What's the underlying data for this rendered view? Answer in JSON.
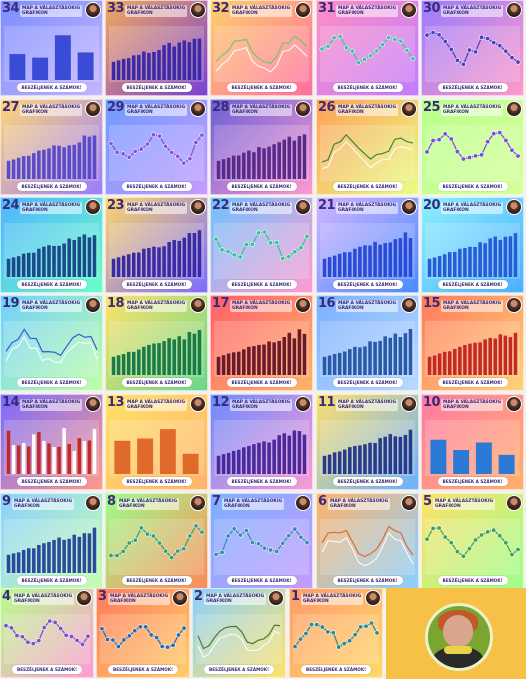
{
  "series_title": "MAP A VÁLASZTÁSOKIG",
  "series_subtitle": "GRAFIKON",
  "cta_label": "BESZÉLJENEK A SZÁMOK!",
  "tiles": [
    {
      "num": "34",
      "grad": [
        "#7b8cff",
        "#c5b6ff"
      ],
      "type": "bars2",
      "accent": "#3a4bd6"
    },
    {
      "num": "33",
      "grad": [
        "#f3a95b",
        "#7a3fd6"
      ],
      "type": "bars",
      "accent": "#3b2aa6"
    },
    {
      "num": "32",
      "grad": [
        "#ffd06a",
        "#ff6ea1"
      ],
      "type": "lines",
      "accent": "#7cc36e"
    },
    {
      "num": "31",
      "grad": [
        "#ff8fc2",
        "#c37bff"
      ],
      "type": "dots",
      "accent": "#3ec3a8"
    },
    {
      "num": "30",
      "grad": [
        "#9a7bff",
        "#ff9ac7"
      ],
      "type": "dots",
      "accent": "#4a3fc2"
    },
    {
      "num": "27",
      "grad": [
        "#ffd777",
        "#9b7bff"
      ],
      "type": "bars",
      "accent": "#5a4bc9"
    },
    {
      "num": "29",
      "grad": [
        "#6f9bff",
        "#c69bff"
      ],
      "type": "dots",
      "accent": "#8a4fe0"
    },
    {
      "num": "28",
      "grad": [
        "#6a5fd6",
        "#ff9ad0"
      ],
      "type": "bars",
      "accent": "#5a2a8a"
    },
    {
      "num": "26",
      "grad": [
        "#ff9f5a",
        "#e8ff84"
      ],
      "type": "lines",
      "accent": "#3a8a3a"
    },
    {
      "num": "25",
      "grad": [
        "#b8ff8a",
        "#d6ff9a"
      ],
      "type": "dots",
      "accent": "#7a4fd6"
    },
    {
      "num": "24",
      "grad": [
        "#4fb3ff",
        "#6affc9"
      ],
      "type": "bars",
      "accent": "#1a4a8a"
    },
    {
      "num": "23",
      "grad": [
        "#ffd66a",
        "#7a6bff"
      ],
      "type": "bars",
      "accent": "#3b2aa6"
    },
    {
      "num": "22",
      "grad": [
        "#6ec3ff",
        "#ff9bd2"
      ],
      "type": "dots",
      "accent": "#2fc49a"
    },
    {
      "num": "21",
      "grad": [
        "#d2b4ff",
        "#4a8bff"
      ],
      "type": "bars",
      "accent": "#2a4bd6"
    },
    {
      "num": "20",
      "grad": [
        "#8ff0ff",
        "#4ab0ff"
      ],
      "type": "bars",
      "accent": "#2a5ad6"
    },
    {
      "num": "19",
      "grad": [
        "#6fd0ff",
        "#bfffa6"
      ],
      "type": "lines",
      "accent": "#3a5ad6"
    },
    {
      "num": "18",
      "grad": [
        "#ffe36a",
        "#69d68b"
      ],
      "type": "bars",
      "accent": "#1a7a4a"
    },
    {
      "num": "17",
      "grad": [
        "#ff5f6a",
        "#ffb46a"
      ],
      "type": "bars",
      "accent": "#6a1a2a"
    },
    {
      "num": "16",
      "grad": [
        "#7ab0ff",
        "#b9d9ff"
      ],
      "type": "bars",
      "accent": "#2a5aa6"
    },
    {
      "num": "15",
      "grad": [
        "#ff7a5a",
        "#ffd27a"
      ],
      "type": "bars",
      "accent": "#c22a2a"
    },
    {
      "num": "14",
      "grad": [
        "#7a6bff",
        "#ff9a8a"
      ],
      "type": "stack",
      "accent": "#c22a2a"
    },
    {
      "num": "13",
      "grad": [
        "#ffe26a",
        "#ffb36a"
      ],
      "type": "bars2",
      "accent": "#e06a2a"
    },
    {
      "num": "12",
      "grad": [
        "#6a8bff",
        "#ff9ad5"
      ],
      "type": "bars",
      "accent": "#4a2a9a"
    },
    {
      "num": "11",
      "grad": [
        "#ffe06a",
        "#6ab0ff"
      ],
      "type": "bars",
      "accent": "#2a3a8a"
    },
    {
      "num": "10",
      "grad": [
        "#ff7aa6",
        "#ffb06a"
      ],
      "type": "bars2",
      "accent": "#2a7ad6"
    },
    {
      "num": "9",
      "grad": [
        "#8ad0ff",
        "#c8ffb0"
      ],
      "type": "bars",
      "accent": "#2a4a9a"
    },
    {
      "num": "8",
      "grad": [
        "#9dff8a",
        "#ff8a5a"
      ],
      "type": "dots",
      "accent": "#2fa07a"
    },
    {
      "num": "7",
      "grad": [
        "#7bb0ff",
        "#c49bff"
      ],
      "type": "dots",
      "accent": "#3a8ab0"
    },
    {
      "num": "6",
      "grad": [
        "#ffb36a",
        "#8ad0ff"
      ],
      "type": "lines",
      "accent": "#e06a2a"
    },
    {
      "num": "5",
      "grad": [
        "#ffe06a",
        "#9dff8a"
      ],
      "type": "dots",
      "accent": "#3fa05a"
    },
    {
      "num": "4",
      "grad": [
        "#b8ff8a",
        "#ff9ad5"
      ],
      "type": "dots",
      "accent": "#7a4fd6"
    },
    {
      "num": "3",
      "grad": [
        "#ff7a5a",
        "#ffcf6a"
      ],
      "type": "dots",
      "accent": "#2a6ab0"
    },
    {
      "num": "2",
      "grad": [
        "#8ad0ff",
        "#ffe36a"
      ],
      "type": "lines",
      "accent": "#4a7a2a"
    },
    {
      "num": "1",
      "grad": [
        "#ff9a6a",
        "#ffd96a"
      ],
      "type": "dots",
      "accent": "#2a8a8a"
    }
  ]
}
